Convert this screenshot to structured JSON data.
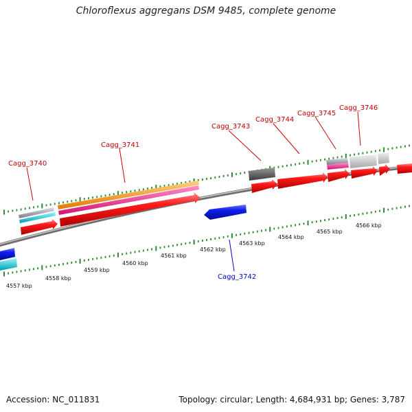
{
  "title": "Chloroflexus aggregans DSM 9485, complete genome",
  "accession": "Accession: NC_011831",
  "topology": "Topology: circular; Length: 4,684,931 bp; Genes: 3,787",
  "colors": {
    "forward_label": "#c00000",
    "reverse_label": "#0000c0",
    "backbone": "#8a8a8a",
    "tick": "#2a8a2a",
    "red_gene": "#ff0000",
    "blue_gene": "#0a14e6",
    "orange": "#ff9900",
    "magenta": "#ff2d9a",
    "cyan": "#00c8d8",
    "grey": "#9a9aa6",
    "dark_grey": "#5a5a5a",
    "light_grey": "#c8c8c8"
  },
  "kbp_labels": [
    "4557 kbp",
    "4558 kbp",
    "4559 kbp",
    "4560 kbp",
    "4561 kbp",
    "4562 kbp",
    "4563 kbp",
    "4564 kbp",
    "4565 kbp",
    "4566 kbp"
  ],
  "genes_forward": [
    {
      "id": "Cagg_3740"
    },
    {
      "id": "Cagg_3741"
    },
    {
      "id": "Cagg_3743"
    },
    {
      "id": "Cagg_3744"
    },
    {
      "id": "Cagg_3745"
    },
    {
      "id": "Cagg_3746"
    }
  ],
  "genes_reverse": [
    {
      "id": "Cagg_3742"
    }
  ]
}
